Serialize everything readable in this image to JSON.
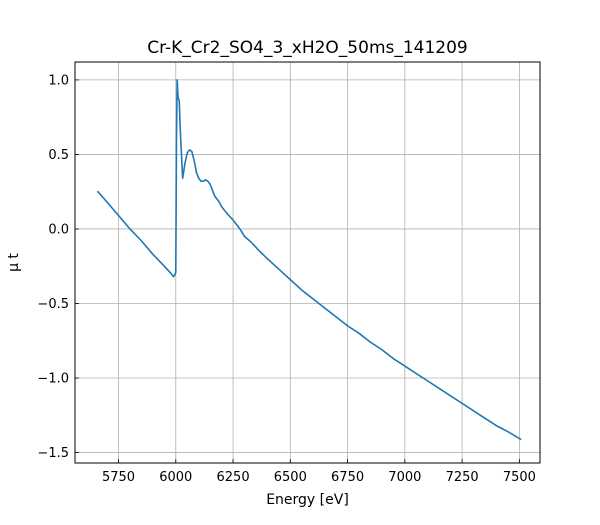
{
  "chart_data": {
    "type": "line",
    "title": "Cr-K_Cr2_SO4_3_xH2O_50ms_141209",
    "xlabel": "Energy [eV]",
    "ylabel": "μ t",
    "xlim": [
      5560,
      7590
    ],
    "ylim": [
      -1.57,
      1.12
    ],
    "grid": true,
    "x_ticks": [
      5750,
      6000,
      6250,
      6500,
      6750,
      7000,
      7250,
      7500
    ],
    "y_ticks": [
      1.0,
      0.5,
      0.0,
      -0.5,
      -1.0,
      -1.5
    ],
    "x_tick_labels": [
      "5750",
      "6000",
      "6250",
      "6500",
      "6750",
      "7000",
      "7250",
      "7500"
    ],
    "y_tick_labels": [
      "1.0",
      "0.5",
      "0.0",
      "−0.5",
      "−1.0",
      "−1.5"
    ],
    "series": [
      {
        "color": "#1f77b4",
        "x": [
          5660,
          5700,
          5750,
          5800,
          5850,
          5900,
          5950,
          5980,
          5990,
          5995,
          6000,
          6003,
          6006,
          6010,
          6015,
          6020,
          6030,
          6040,
          6050,
          6060,
          6070,
          6080,
          6090,
          6100,
          6110,
          6120,
          6130,
          6140,
          6150,
          6160,
          6170,
          6180,
          6190,
          6200,
          6220,
          6250,
          6280,
          6300,
          6330,
          6360,
          6400,
          6450,
          6500,
          6550,
          6600,
          6650,
          6700,
          6750,
          6800,
          6850,
          6900,
          6950,
          7000,
          7050,
          7100,
          7150,
          7200,
          7250,
          7300,
          7350,
          7400,
          7450,
          7505
        ],
        "y": [
          0.25,
          0.18,
          0.09,
          0.0,
          -0.08,
          -0.17,
          -0.25,
          -0.3,
          -0.32,
          -0.31,
          -0.29,
          0.6,
          1.0,
          0.88,
          0.86,
          0.65,
          0.34,
          0.44,
          0.51,
          0.53,
          0.52,
          0.46,
          0.38,
          0.34,
          0.32,
          0.32,
          0.33,
          0.32,
          0.3,
          0.26,
          0.22,
          0.2,
          0.18,
          0.15,
          0.11,
          0.06,
          0.0,
          -0.05,
          -0.09,
          -0.14,
          -0.2,
          -0.27,
          -0.34,
          -0.41,
          -0.47,
          -0.53,
          -0.59,
          -0.65,
          -0.7,
          -0.76,
          -0.81,
          -0.87,
          -0.92,
          -0.97,
          -1.02,
          -1.07,
          -1.12,
          -1.17,
          -1.22,
          -1.27,
          -1.32,
          -1.36,
          -1.41
        ]
      }
    ]
  }
}
